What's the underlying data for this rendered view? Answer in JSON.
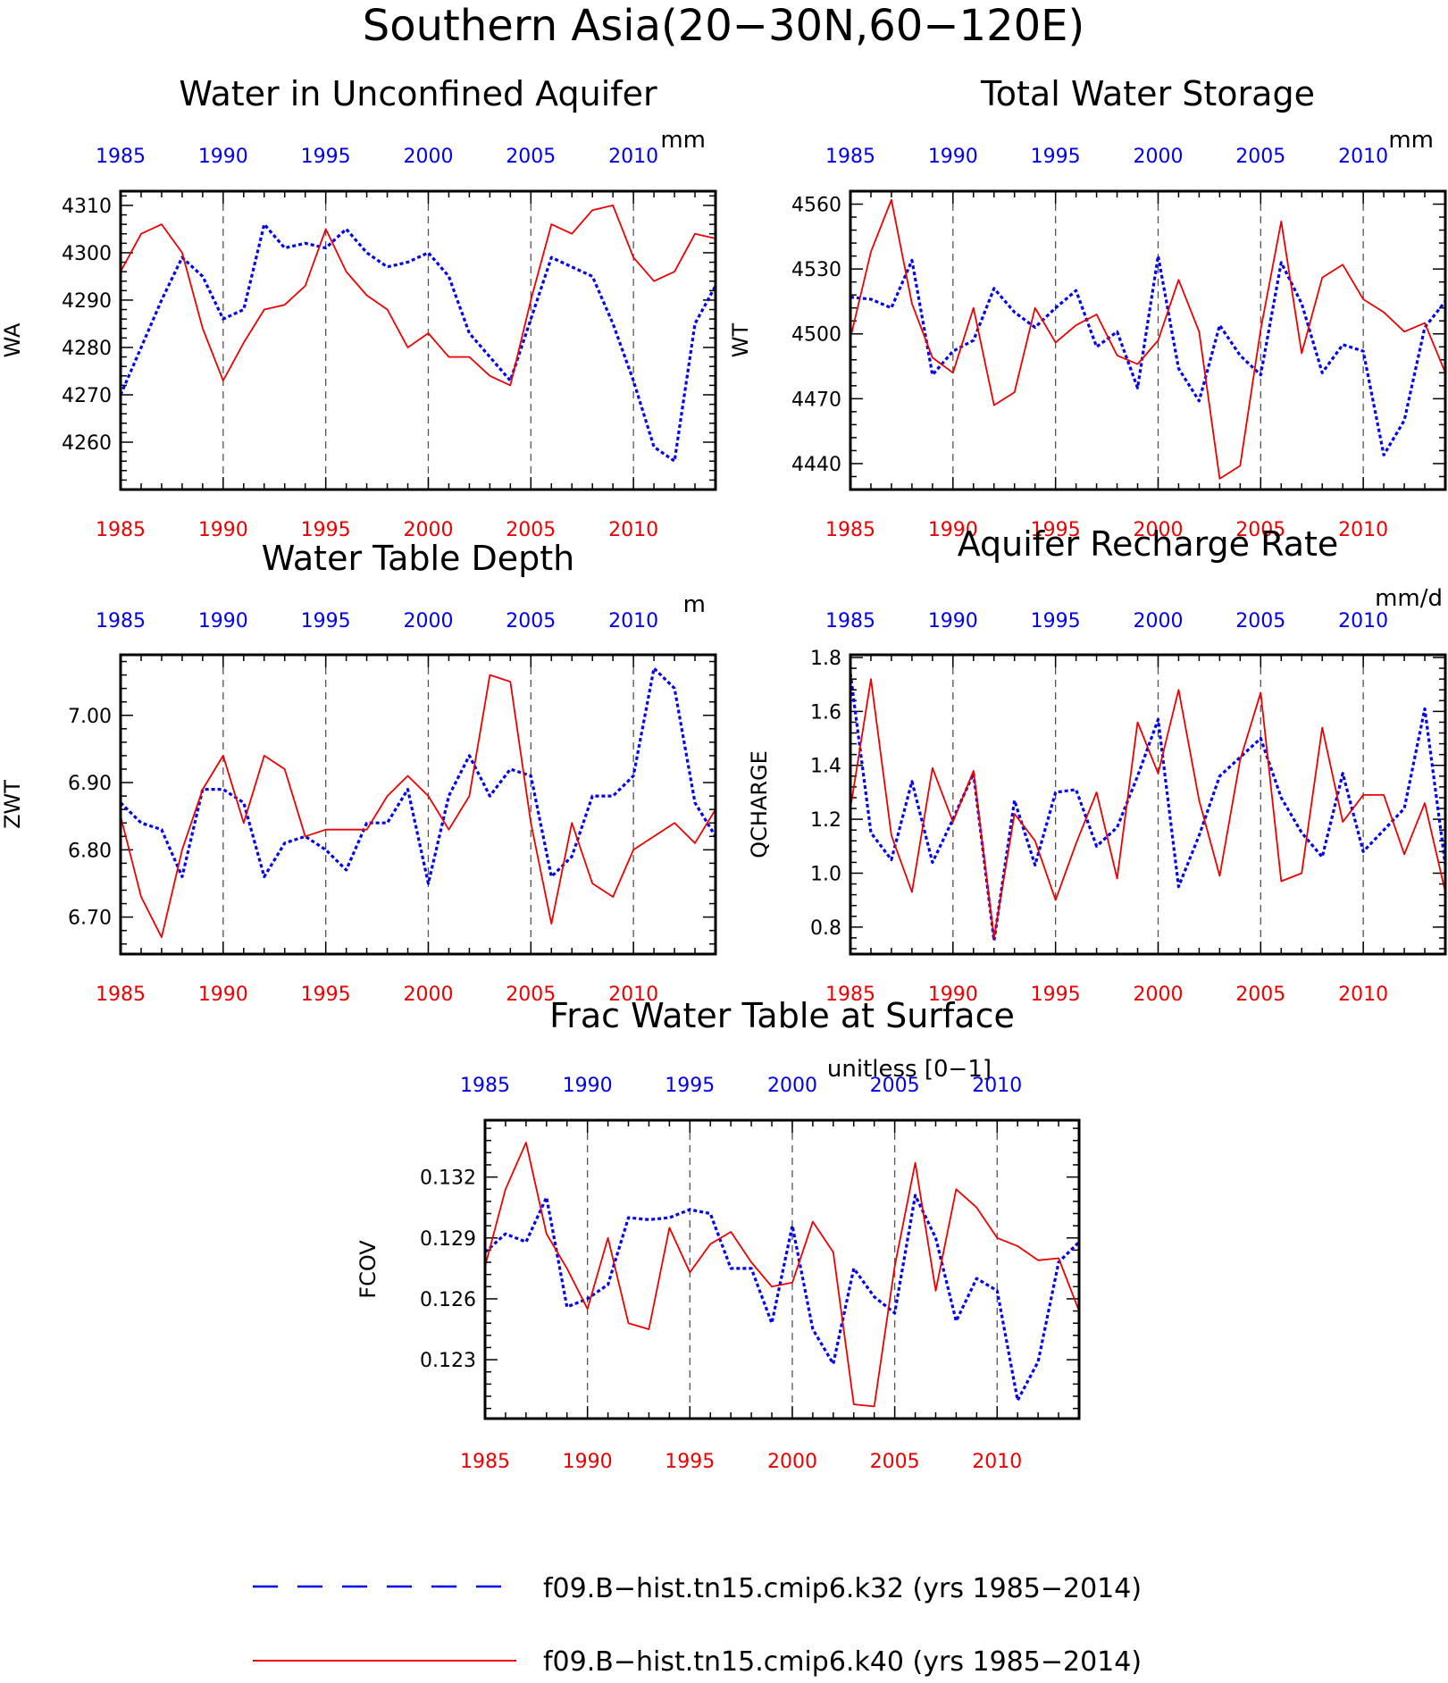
{
  "figure_title": "Southern Asia(20−30N,60−120E)",
  "colors": {
    "k32": "#0000ee",
    "k40": "#ee0000",
    "axis": "#000000",
    "grid": "#555555"
  },
  "legend": [
    {
      "label": "f09.B−hist.tn15.cmip6.k32 (yrs 1985−2014)",
      "color": "#0000ee",
      "style": "dashed"
    },
    {
      "label": "f09.B−hist.tn15.cmip6.k40 (yrs 1985−2014)",
      "color": "#ee0000",
      "style": "solid"
    }
  ],
  "chart_data": [
    {
      "type": "line",
      "title": "Water in Unconfined Aquifer",
      "ylabel": "WA",
      "units": "mm",
      "xlim": [
        1985,
        2014
      ],
      "ylim": [
        4250,
        4313
      ],
      "yticks": [
        4260,
        4270,
        4280,
        4290,
        4300,
        4310
      ],
      "ytick_labels": [
        "4260",
        "4270",
        "4280",
        "4290",
        "4300",
        "4310"
      ],
      "xticks": [
        1985,
        1990,
        1995,
        2000,
        2005,
        2010
      ],
      "xtick_labels": [
        "1985",
        "1990",
        "1995",
        "2000",
        "2005",
        "2010"
      ],
      "grid_vertical": [
        1990,
        1995,
        2000,
        2005,
        2010
      ],
      "x": [
        1985,
        1986,
        1987,
        1988,
        1989,
        1990,
        1991,
        1992,
        1993,
        1994,
        1995,
        1996,
        1997,
        1998,
        1999,
        2000,
        2001,
        2002,
        2003,
        2004,
        2005,
        2006,
        2007,
        2008,
        2009,
        2010,
        2011,
        2012,
        2013,
        2014
      ],
      "series": [
        {
          "name": "f09.B−hist.tn15.cmip6.k32 (yrs 1985−2014)",
          "color": "#0000ee",
          "style": "dashed",
          "values": [
            4270,
            4280,
            4290,
            4299,
            4295,
            4286,
            4288,
            4306,
            4301,
            4302,
            4301,
            4305,
            4300,
            4297,
            4298,
            4300,
            4295,
            4283,
            4278,
            4273,
            4286,
            4299,
            4297,
            4295,
            4285,
            4273,
            4259,
            4256,
            4285,
            4293
          ]
        },
        {
          "name": "f09.B−hist.tn15.cmip6.k40 (yrs 1985−2014)",
          "color": "#ee0000",
          "style": "solid",
          "values": [
            4296,
            4304,
            4306,
            4300,
            4284,
            4273,
            4281,
            4288,
            4289,
            4293,
            4305,
            4296,
            4291,
            4288,
            4280,
            4283,
            4278,
            4278,
            4274,
            4272,
            4290,
            4306,
            4304,
            4309,
            4310,
            4299,
            4294,
            4296,
            4304,
            4303
          ]
        }
      ]
    },
    {
      "type": "line",
      "title": "Total Water Storage",
      "ylabel": "WT",
      "units": "mm",
      "xlim": [
        1985,
        2014
      ],
      "ylim": [
        4428,
        4566
      ],
      "yticks": [
        4440,
        4470,
        4500,
        4530,
        4560
      ],
      "ytick_labels": [
        "4440",
        "4470",
        "4500",
        "4530",
        "4560"
      ],
      "xticks": [
        1985,
        1990,
        1995,
        2000,
        2005,
        2010
      ],
      "xtick_labels": [
        "1985",
        "1990",
        "1995",
        "2000",
        "2005",
        "2010"
      ],
      "grid_vertical": [
        1990,
        1995,
        2000,
        2005,
        2010
      ],
      "x": [
        1985,
        1986,
        1987,
        1988,
        1989,
        1990,
        1991,
        1992,
        1993,
        1994,
        1995,
        1996,
        1997,
        1998,
        1999,
        2000,
        2001,
        2002,
        2003,
        2004,
        2005,
        2006,
        2007,
        2008,
        2009,
        2010,
        2011,
        2012,
        2013,
        2014
      ],
      "series": [
        {
          "name": "f09.B−hist.tn15.cmip6.k32 (yrs 1985−2014)",
          "color": "#0000ee",
          "style": "dashed",
          "values": [
            4517,
            4516,
            4512,
            4534,
            4481,
            4492,
            4497,
            4521,
            4510,
            4503,
            4512,
            4520,
            4494,
            4501,
            4475,
            4536,
            4484,
            4469,
            4504,
            4490,
            4481,
            4533,
            4514,
            4482,
            4495,
            4492,
            4444,
            4460,
            4503,
            4515
          ]
        },
        {
          "name": "f09.B−hist.tn15.cmip6.k40 (yrs 1985−2014)",
          "color": "#ee0000",
          "style": "solid",
          "values": [
            4498,
            4538,
            4562,
            4514,
            4489,
            4482,
            4512,
            4467,
            4473,
            4512,
            4496,
            4504,
            4509,
            4490,
            4486,
            4497,
            4525,
            4501,
            4433,
            4439,
            4502,
            4552,
            4491,
            4526,
            4532,
            4516,
            4510,
            4501,
            4505,
            4482
          ]
        }
      ]
    },
    {
      "type": "line",
      "title": "Water Table Depth",
      "ylabel": "ZWT",
      "units": "m",
      "xlim": [
        1985,
        2014
      ],
      "ylim": [
        6.645,
        7.09
      ],
      "yticks": [
        6.7,
        6.8,
        6.9,
        7.0
      ],
      "ytick_labels": [
        "6.70",
        "6.80",
        "6.90",
        "7.00"
      ],
      "xticks": [
        1985,
        1990,
        1995,
        2000,
        2005,
        2010
      ],
      "xtick_labels": [
        "1985",
        "1990",
        "1995",
        "2000",
        "2005",
        "2010"
      ],
      "grid_vertical": [
        1990,
        1995,
        2000,
        2005,
        2010
      ],
      "x": [
        1985,
        1986,
        1987,
        1988,
        1989,
        1990,
        1991,
        1992,
        1993,
        1994,
        1995,
        1996,
        1997,
        1998,
        1999,
        2000,
        2001,
        2002,
        2003,
        2004,
        2005,
        2006,
        2007,
        2008,
        2009,
        2010,
        2011,
        2012,
        2013,
        2014
      ],
      "series": [
        {
          "name": "f09.B−hist.tn15.cmip6.k32 (yrs 1985−2014)",
          "color": "#0000ee",
          "style": "dashed",
          "values": [
            6.87,
            6.84,
            6.83,
            6.76,
            6.89,
            6.89,
            6.87,
            6.76,
            6.81,
            6.82,
            6.8,
            6.77,
            6.84,
            6.84,
            6.89,
            6.75,
            6.88,
            6.94,
            6.88,
            6.92,
            6.91,
            6.76,
            6.79,
            6.88,
            6.88,
            6.91,
            7.07,
            7.04,
            6.87,
            6.82
          ]
        },
        {
          "name": "f09.B−hist.tn15.cmip6.k40 (yrs 1985−2014)",
          "color": "#ee0000",
          "style": "solid",
          "values": [
            6.85,
            6.73,
            6.67,
            6.8,
            6.89,
            6.94,
            6.84,
            6.94,
            6.92,
            6.82,
            6.83,
            6.83,
            6.83,
            6.88,
            6.91,
            6.88,
            6.83,
            6.88,
            7.06,
            7.05,
            6.84,
            6.69,
            6.84,
            6.75,
            6.73,
            6.8,
            6.82,
            6.84,
            6.81,
            6.86
          ]
        }
      ]
    },
    {
      "type": "line",
      "title": "Aquifer Recharge Rate",
      "ylabel": "QCHARGE",
      "units": "mm/d",
      "xlim": [
        1985,
        2014
      ],
      "ylim": [
        0.7,
        1.81
      ],
      "yticks": [
        0.8,
        1.0,
        1.2,
        1.4,
        1.6,
        1.8
      ],
      "ytick_labels": [
        "0.8",
        "1.0",
        "1.2",
        "1.4",
        "1.6",
        "1.8"
      ],
      "xticks": [
        1985,
        1990,
        1995,
        2000,
        2005,
        2010
      ],
      "xtick_labels": [
        "1985",
        "1990",
        "1995",
        "2000",
        "2005",
        "2010"
      ],
      "grid_vertical": [
        1990,
        1995,
        2000,
        2005,
        2010
      ],
      "x": [
        1985,
        1986,
        1987,
        1988,
        1989,
        1990,
        1991,
        1992,
        1993,
        1994,
        1995,
        1996,
        1997,
        1998,
        1999,
        2000,
        2001,
        2002,
        2003,
        2004,
        2005,
        2006,
        2007,
        2008,
        2009,
        2010,
        2011,
        2012,
        2013,
        2014
      ],
      "series": [
        {
          "name": "f09.B−hist.tn15.cmip6.k32 (yrs 1985−2014)",
          "color": "#0000ee",
          "style": "dashed",
          "values": [
            1.74,
            1.15,
            1.05,
            1.34,
            1.04,
            1.2,
            1.37,
            0.75,
            1.27,
            1.03,
            1.3,
            1.31,
            1.1,
            1.17,
            1.36,
            1.57,
            0.95,
            1.14,
            1.36,
            1.43,
            1.5,
            1.28,
            1.15,
            1.06,
            1.37,
            1.08,
            1.16,
            1.24,
            1.61,
            1.03
          ]
        },
        {
          "name": "f09.B−hist.tn15.cmip6.k40 (yrs 1985−2014)",
          "color": "#ee0000",
          "style": "solid",
          "values": [
            1.24,
            1.72,
            1.14,
            0.93,
            1.39,
            1.19,
            1.38,
            0.76,
            1.22,
            1.12,
            0.9,
            1.11,
            1.3,
            0.98,
            1.56,
            1.37,
            1.68,
            1.27,
            0.99,
            1.42,
            1.67,
            0.97,
            1.0,
            1.54,
            1.19,
            1.29,
            1.29,
            1.07,
            1.26,
            0.93
          ]
        }
      ]
    },
    {
      "type": "line",
      "title": "Frac Water Table at Surface",
      "ylabel": "FCOV",
      "units": "unitless [0−1]",
      "xlim": [
        1985,
        2014
      ],
      "ylim": [
        0.1201,
        0.1348
      ],
      "yticks": [
        0.123,
        0.126,
        0.129,
        0.132
      ],
      "ytick_labels": [
        "0.123",
        "0.126",
        "0.129",
        "0.132"
      ],
      "xticks": [
        1985,
        1990,
        1995,
        2000,
        2005,
        2010
      ],
      "xtick_labels": [
        "1985",
        "1990",
        "1995",
        "2000",
        "2005",
        "2010"
      ],
      "grid_vertical": [
        1990,
        1995,
        2000,
        2005,
        2010
      ],
      "x": [
        1985,
        1986,
        1987,
        1988,
        1989,
        1990,
        1991,
        1992,
        1993,
        1994,
        1995,
        1996,
        1997,
        1998,
        1999,
        2000,
        2001,
        2002,
        2003,
        2004,
        2005,
        2006,
        2007,
        2008,
        2009,
        2010,
        2011,
        2012,
        2013,
        2014
      ],
      "series": [
        {
          "name": "f09.B−hist.tn15.cmip6.k32 (yrs 1985−2014)",
          "color": "#0000ee",
          "style": "dashed",
          "values": [
            0.1283,
            0.1292,
            0.1288,
            0.131,
            0.1256,
            0.126,
            0.1267,
            0.13,
            0.1299,
            0.13,
            0.1304,
            0.1302,
            0.1275,
            0.1275,
            0.1248,
            0.1296,
            0.1245,
            0.1228,
            0.1275,
            0.1261,
            0.1253,
            0.1311,
            0.129,
            0.1249,
            0.127,
            0.1264,
            0.121,
            0.1229,
            0.1278,
            0.1288
          ]
        },
        {
          "name": "f09.B−hist.tn15.cmip6.k40 (yrs 1985−2014)",
          "color": "#ee0000",
          "style": "solid",
          "values": [
            0.1276,
            0.1314,
            0.1337,
            0.1292,
            0.1275,
            0.1255,
            0.129,
            0.1248,
            0.1245,
            0.1295,
            0.1273,
            0.1287,
            0.1293,
            0.1278,
            0.1266,
            0.1268,
            0.1298,
            0.1283,
            0.1208,
            0.1207,
            0.1276,
            0.1327,
            0.1264,
            0.1314,
            0.1305,
            0.129,
            0.1286,
            0.1279,
            0.128,
            0.1254
          ]
        }
      ]
    }
  ]
}
